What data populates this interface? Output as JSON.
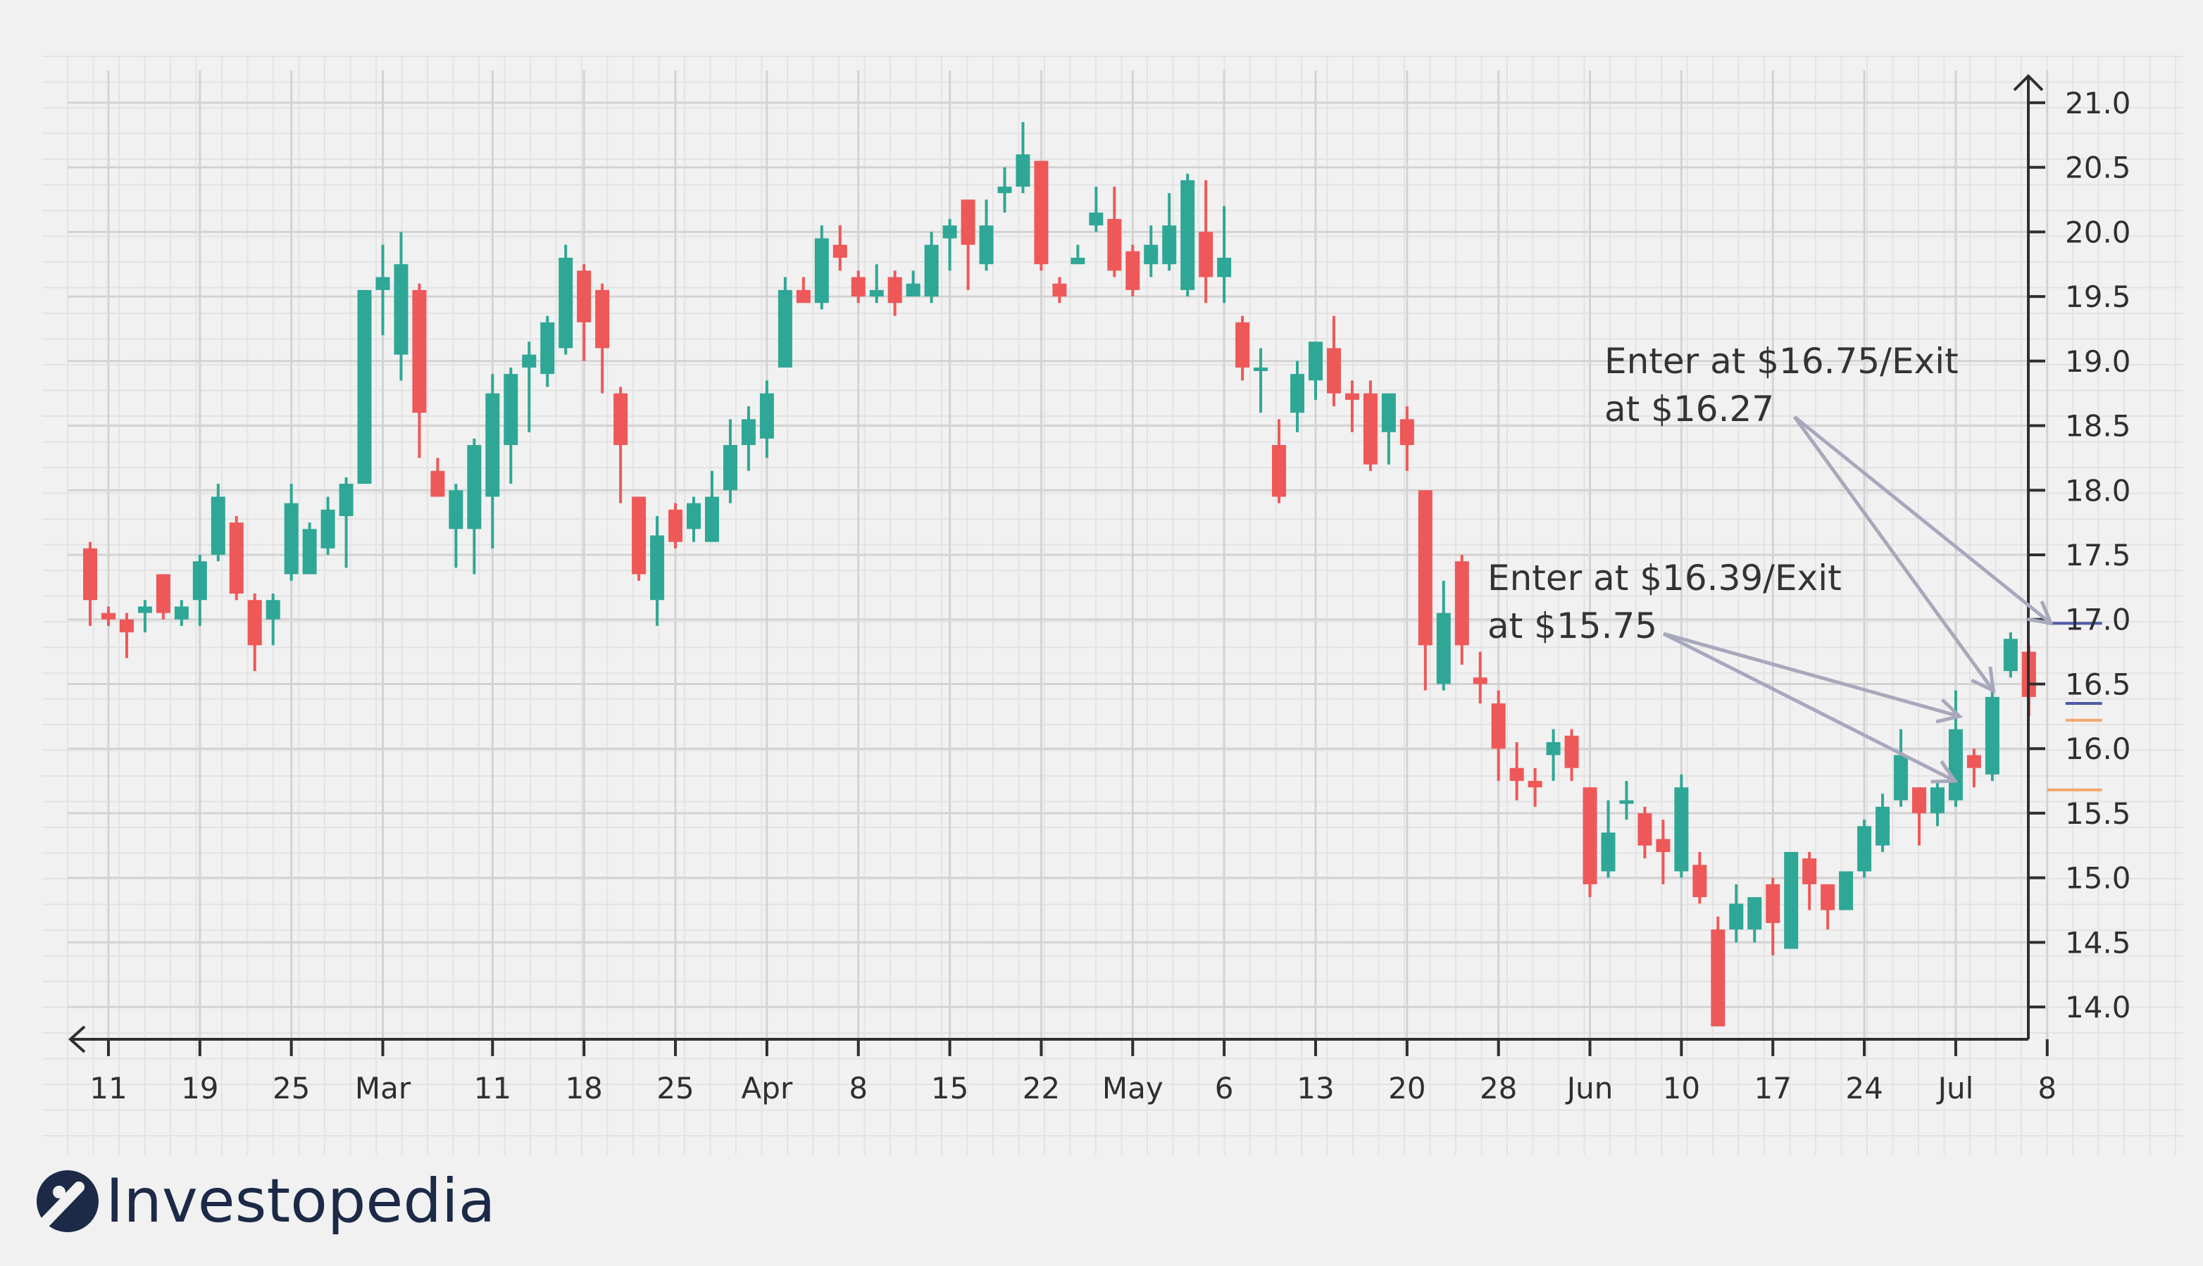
{
  "chart_data": {
    "type": "candlestick",
    "title": "",
    "xlabel": "",
    "ylabel": "",
    "ylim": [
      13.75,
      21.25
    ],
    "y_ticks": [
      "21.0",
      "20.5",
      "20.0",
      "19.5",
      "19.0",
      "18.5",
      "18.0",
      "17.5",
      "17.0",
      "16.5",
      "16.0",
      "15.5",
      "15.0",
      "14.5",
      "14.0"
    ],
    "x_ticks": [
      {
        "label": "11",
        "index": 1
      },
      {
        "label": "19",
        "index": 6
      },
      {
        "label": "25",
        "index": 11
      },
      {
        "label": "Mar",
        "index": 16
      },
      {
        "label": "11",
        "index": 22
      },
      {
        "label": "18",
        "index": 27
      },
      {
        "label": "25",
        "index": 32
      },
      {
        "label": "Apr",
        "index": 37
      },
      {
        "label": "8",
        "index": 42
      },
      {
        "label": "15",
        "index": 47
      },
      {
        "label": "22",
        "index": 52
      },
      {
        "label": "May",
        "index": 57
      },
      {
        "label": "6",
        "index": 62
      },
      {
        "label": "13",
        "index": 67
      },
      {
        "label": "20",
        "index": 72
      },
      {
        "label": "28",
        "index": 77
      },
      {
        "label": "Jun",
        "index": 82
      },
      {
        "label": "10",
        "index": 87
      },
      {
        "label": "17",
        "index": 92
      },
      {
        "label": "24",
        "index": 97
      },
      {
        "label": "Jul",
        "index": 102
      },
      {
        "label": "8",
        "index": 107
      }
    ],
    "grid": true,
    "up_color": "#2fa796",
    "down_color": "#ee5858",
    "candles": [
      [
        17.55,
        17.15,
        17.6,
        16.95
      ],
      [
        17.05,
        17.0,
        17.1,
        16.95
      ],
      [
        17.0,
        16.9,
        17.05,
        16.7
      ],
      [
        17.05,
        17.1,
        17.15,
        16.9
      ],
      [
        17.35,
        17.05,
        17.35,
        17.0
      ],
      [
        17.0,
        17.1,
        17.15,
        16.95
      ],
      [
        17.15,
        17.45,
        17.5,
        16.95
      ],
      [
        17.5,
        17.95,
        18.05,
        17.45
      ],
      [
        17.75,
        17.2,
        17.8,
        17.15
      ],
      [
        17.15,
        16.8,
        17.2,
        16.6
      ],
      [
        17.0,
        17.15,
        17.2,
        16.8
      ],
      [
        17.35,
        17.9,
        18.05,
        17.3
      ],
      [
        17.35,
        17.7,
        17.75,
        17.35
      ],
      [
        17.55,
        17.85,
        17.95,
        17.5
      ],
      [
        17.8,
        18.05,
        18.1,
        17.4
      ],
      [
        18.05,
        19.55,
        19.55,
        18.05
      ],
      [
        19.55,
        19.65,
        19.9,
        19.2
      ],
      [
        19.05,
        19.75,
        20.0,
        18.85
      ],
      [
        19.55,
        18.6,
        19.6,
        18.25
      ],
      [
        18.15,
        17.95,
        18.25,
        17.95
      ],
      [
        17.7,
        18.0,
        18.05,
        17.4
      ],
      [
        17.7,
        18.35,
        18.4,
        17.35
      ],
      [
        17.95,
        18.75,
        18.9,
        17.55
      ],
      [
        18.35,
        18.9,
        18.95,
        18.05
      ],
      [
        18.95,
        19.05,
        19.15,
        18.45
      ],
      [
        18.9,
        19.3,
        19.35,
        18.8
      ],
      [
        19.1,
        19.8,
        19.9,
        19.05
      ],
      [
        19.7,
        19.3,
        19.75,
        19.0
      ],
      [
        19.55,
        19.1,
        19.6,
        18.75
      ],
      [
        18.75,
        18.35,
        18.8,
        17.9
      ],
      [
        17.95,
        17.35,
        17.95,
        17.3
      ],
      [
        17.15,
        17.65,
        17.8,
        16.95
      ],
      [
        17.85,
        17.6,
        17.9,
        17.55
      ],
      [
        17.7,
        17.9,
        17.95,
        17.6
      ],
      [
        17.6,
        17.95,
        18.15,
        17.6
      ],
      [
        18.0,
        18.35,
        18.55,
        17.9
      ],
      [
        18.35,
        18.55,
        18.65,
        18.15
      ],
      [
        18.4,
        18.75,
        18.85,
        18.25
      ],
      [
        18.95,
        19.55,
        19.65,
        18.95
      ],
      [
        19.55,
        19.45,
        19.65,
        19.45
      ],
      [
        19.45,
        19.95,
        20.05,
        19.4
      ],
      [
        19.9,
        19.8,
        20.05,
        19.7
      ],
      [
        19.65,
        19.5,
        19.7,
        19.45
      ],
      [
        19.5,
        19.55,
        19.75,
        19.45
      ],
      [
        19.65,
        19.45,
        19.7,
        19.35
      ],
      [
        19.5,
        19.6,
        19.7,
        19.5
      ],
      [
        19.5,
        19.9,
        20.0,
        19.45
      ],
      [
        19.95,
        20.05,
        20.1,
        19.7
      ],
      [
        20.25,
        19.9,
        20.25,
        19.55
      ],
      [
        19.75,
        20.05,
        20.25,
        19.7
      ],
      [
        20.3,
        20.35,
        20.5,
        20.15
      ],
      [
        20.35,
        20.6,
        20.85,
        20.3
      ],
      [
        20.55,
        19.75,
        20.55,
        19.7
      ],
      [
        19.6,
        19.5,
        19.65,
        19.45
      ],
      [
        19.75,
        19.8,
        19.9,
        19.75
      ],
      [
        20.05,
        20.15,
        20.35,
        20.0
      ],
      [
        20.1,
        19.7,
        20.35,
        19.65
      ],
      [
        19.85,
        19.55,
        19.9,
        19.5
      ],
      [
        19.75,
        19.9,
        20.05,
        19.65
      ],
      [
        19.75,
        20.05,
        20.3,
        19.7
      ],
      [
        19.55,
        20.4,
        20.45,
        19.5
      ],
      [
        20.0,
        19.65,
        20.4,
        19.45
      ],
      [
        19.65,
        19.8,
        20.2,
        19.45
      ],
      [
        19.3,
        18.95,
        19.35,
        18.85
      ],
      [
        18.95,
        18.95,
        19.1,
        18.6
      ],
      [
        18.35,
        17.95,
        18.55,
        17.9
      ],
      [
        18.6,
        18.9,
        19.0,
        18.45
      ],
      [
        18.85,
        19.15,
        19.15,
        18.7
      ],
      [
        19.1,
        18.75,
        19.35,
        18.65
      ],
      [
        18.75,
        18.7,
        18.85,
        18.45
      ],
      [
        18.75,
        18.2,
        18.85,
        18.15
      ],
      [
        18.45,
        18.75,
        18.75,
        18.2
      ],
      [
        18.55,
        18.35,
        18.65,
        18.15
      ],
      [
        18.0,
        16.8,
        18.0,
        16.45
      ],
      [
        16.5,
        17.05,
        17.3,
        16.45
      ],
      [
        17.45,
        16.8,
        17.5,
        16.65
      ],
      [
        16.55,
        16.5,
        16.75,
        16.35
      ],
      [
        16.35,
        16.0,
        16.45,
        15.75
      ],
      [
        15.85,
        15.75,
        16.05,
        15.6
      ],
      [
        15.75,
        15.7,
        15.85,
        15.55
      ],
      [
        15.95,
        16.05,
        16.15,
        15.75
      ],
      [
        16.1,
        15.85,
        16.15,
        15.75
      ],
      [
        15.7,
        14.95,
        15.7,
        14.85
      ],
      [
        15.05,
        15.35,
        15.6,
        15.0
      ],
      [
        15.6,
        15.6,
        15.75,
        15.45
      ],
      [
        15.5,
        15.25,
        15.55,
        15.15
      ],
      [
        15.3,
        15.2,
        15.45,
        14.95
      ],
      [
        15.05,
        15.7,
        15.8,
        15.0
      ],
      [
        15.1,
        14.85,
        15.2,
        14.8
      ],
      [
        14.6,
        13.85,
        14.7,
        13.85
      ],
      [
        14.6,
        14.8,
        14.95,
        14.5
      ],
      [
        14.6,
        14.85,
        14.85,
        14.5
      ],
      [
        14.95,
        14.65,
        15.0,
        14.4
      ],
      [
        14.45,
        15.2,
        15.2,
        14.45
      ],
      [
        15.15,
        14.95,
        15.2,
        14.75
      ],
      [
        14.95,
        14.75,
        14.95,
        14.6
      ],
      [
        14.75,
        15.05,
        15.05,
        14.75
      ],
      [
        15.05,
        15.4,
        15.45,
        15.0
      ],
      [
        15.25,
        15.55,
        15.65,
        15.2
      ],
      [
        15.6,
        15.95,
        16.15,
        15.55
      ],
      [
        15.7,
        15.5,
        15.7,
        15.25
      ],
      [
        15.5,
        15.7,
        15.75,
        15.4
      ],
      [
        15.6,
        16.15,
        16.45,
        15.55
      ],
      [
        15.95,
        15.85,
        16.0,
        15.7
      ],
      [
        15.8,
        16.4,
        16.5,
        15.75
      ],
      [
        16.6,
        16.85,
        16.9,
        16.55
      ],
      [
        16.75,
        16.4,
        16.8,
        16.25
      ]
    ],
    "level_lines": [
      {
        "color": "#4f5aa6",
        "y": 16.97,
        "from": 107,
        "to": 110
      },
      {
        "color": "#4f5aa6",
        "y": 16.35,
        "from": 108,
        "to": 110
      },
      {
        "color": "#f3a66c",
        "y": 16.22,
        "from": 108,
        "to": 110
      },
      {
        "color": "#f3a66c",
        "y": 15.68,
        "from": 107,
        "to": 110
      }
    ],
    "annotations": [
      {
        "lines": [
          "Enter at $16.75/Exit",
          "at $16.27"
        ],
        "targets": [
          {
            "index": 107.2,
            "y": 16.97
          },
          {
            "index": 104.05,
            "y": 16.45
          }
        ]
      },
      {
        "lines": [
          "Enter at $16.39/Exit",
          "at $15.75"
        ],
        "targets": [
          {
            "index": 102.2,
            "y": 16.25
          },
          {
            "index": 101.95,
            "y": 15.75
          }
        ]
      }
    ]
  },
  "branding": {
    "logo_name": "Investopedia"
  }
}
